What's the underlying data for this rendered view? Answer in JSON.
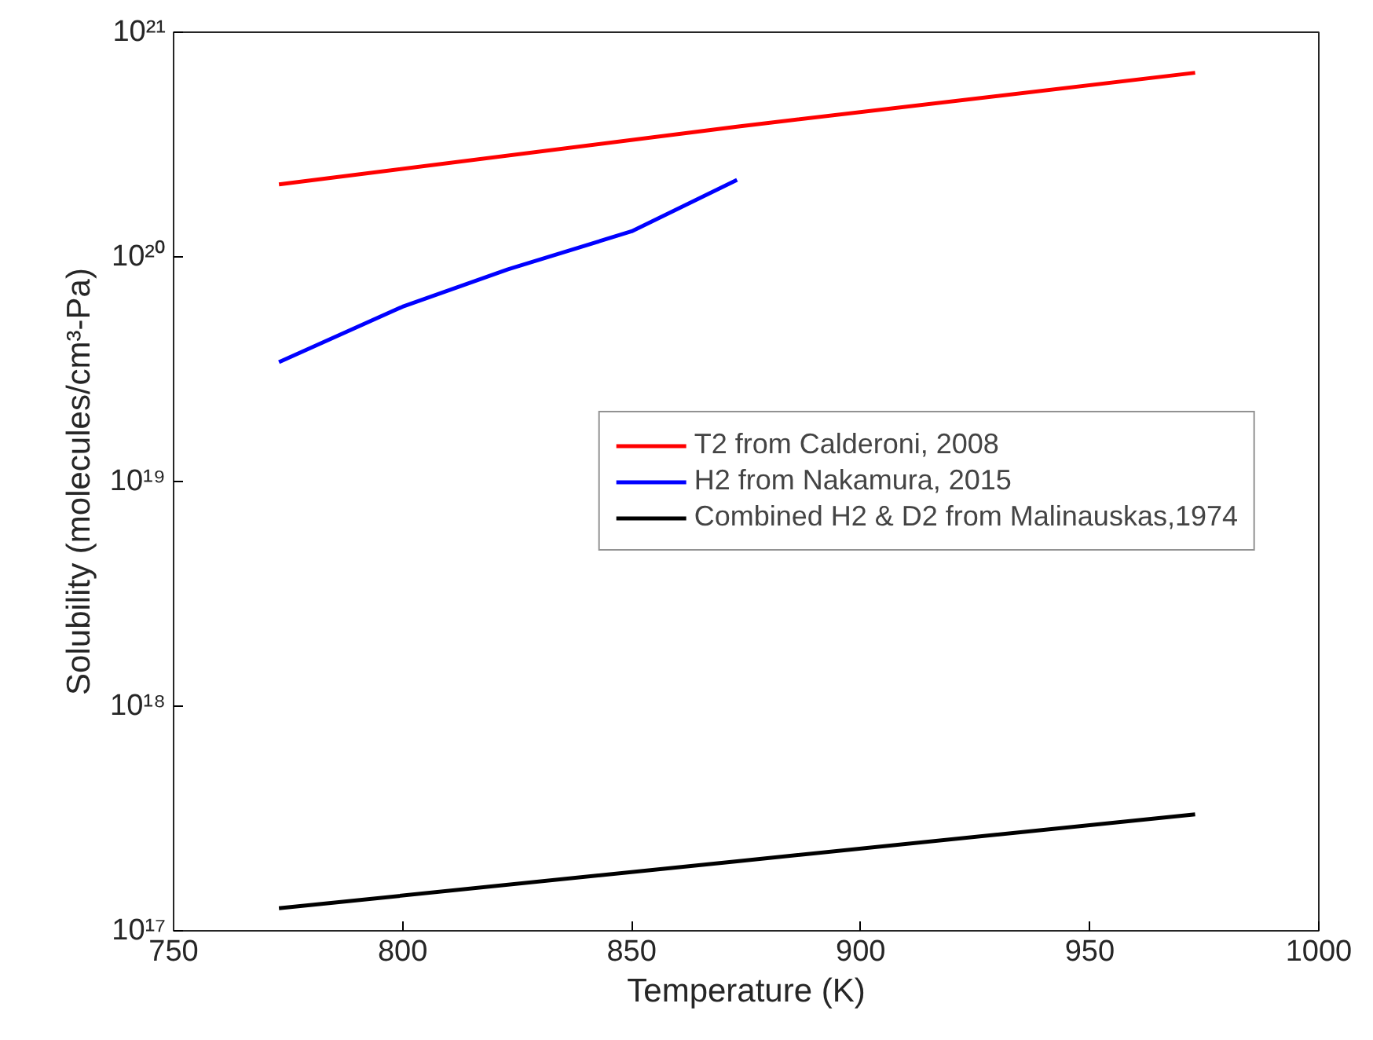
{
  "chart_data": {
    "type": "line",
    "xlabel": "Temperature (K)",
    "ylabel": "Solubility (molecules/cm³-Pa)",
    "log": "y",
    "xlim": [
      750,
      1000
    ],
    "xticks": [
      750,
      800,
      850,
      900,
      950,
      1000
    ],
    "ylim": [
      1e+17,
      1e+21
    ],
    "yticks": [
      {
        "value": 1e+17,
        "label": "10¹⁷"
      },
      {
        "value": 1e+18,
        "label": "10¹⁸"
      },
      {
        "value": 1e+19,
        "label": "10¹⁹"
      },
      {
        "value": 1e+20,
        "label": "10²⁰"
      },
      {
        "value": 1e+21,
        "label": "10²¹"
      }
    ],
    "grid": false,
    "legend": "right",
    "line_style": "solid",
    "series": [
      {
        "name": "T2 from Calderoni, 2008",
        "color": "#ff0000",
        "x": [
          773,
          873,
          973
        ],
        "values": [
          2.1e+20,
          3.8e+20,
          6.6e+20
        ]
      },
      {
        "name": "H2 from Nakamura, 2015",
        "color": "#0000ff",
        "x": [
          773,
          800,
          823,
          850,
          873
        ],
        "values": [
          3.4e+19,
          6e+19,
          8.8e+19,
          1.3e+20,
          2.2e+20
        ]
      },
      {
        "name": "Combined H2 & D2 from Malinauskas,1974",
        "color": "#000000",
        "x": [
          773,
          873,
          973
        ],
        "values": [
          1.26e+17,
          2.04e+17,
          3.3e+17
        ]
      }
    ]
  }
}
